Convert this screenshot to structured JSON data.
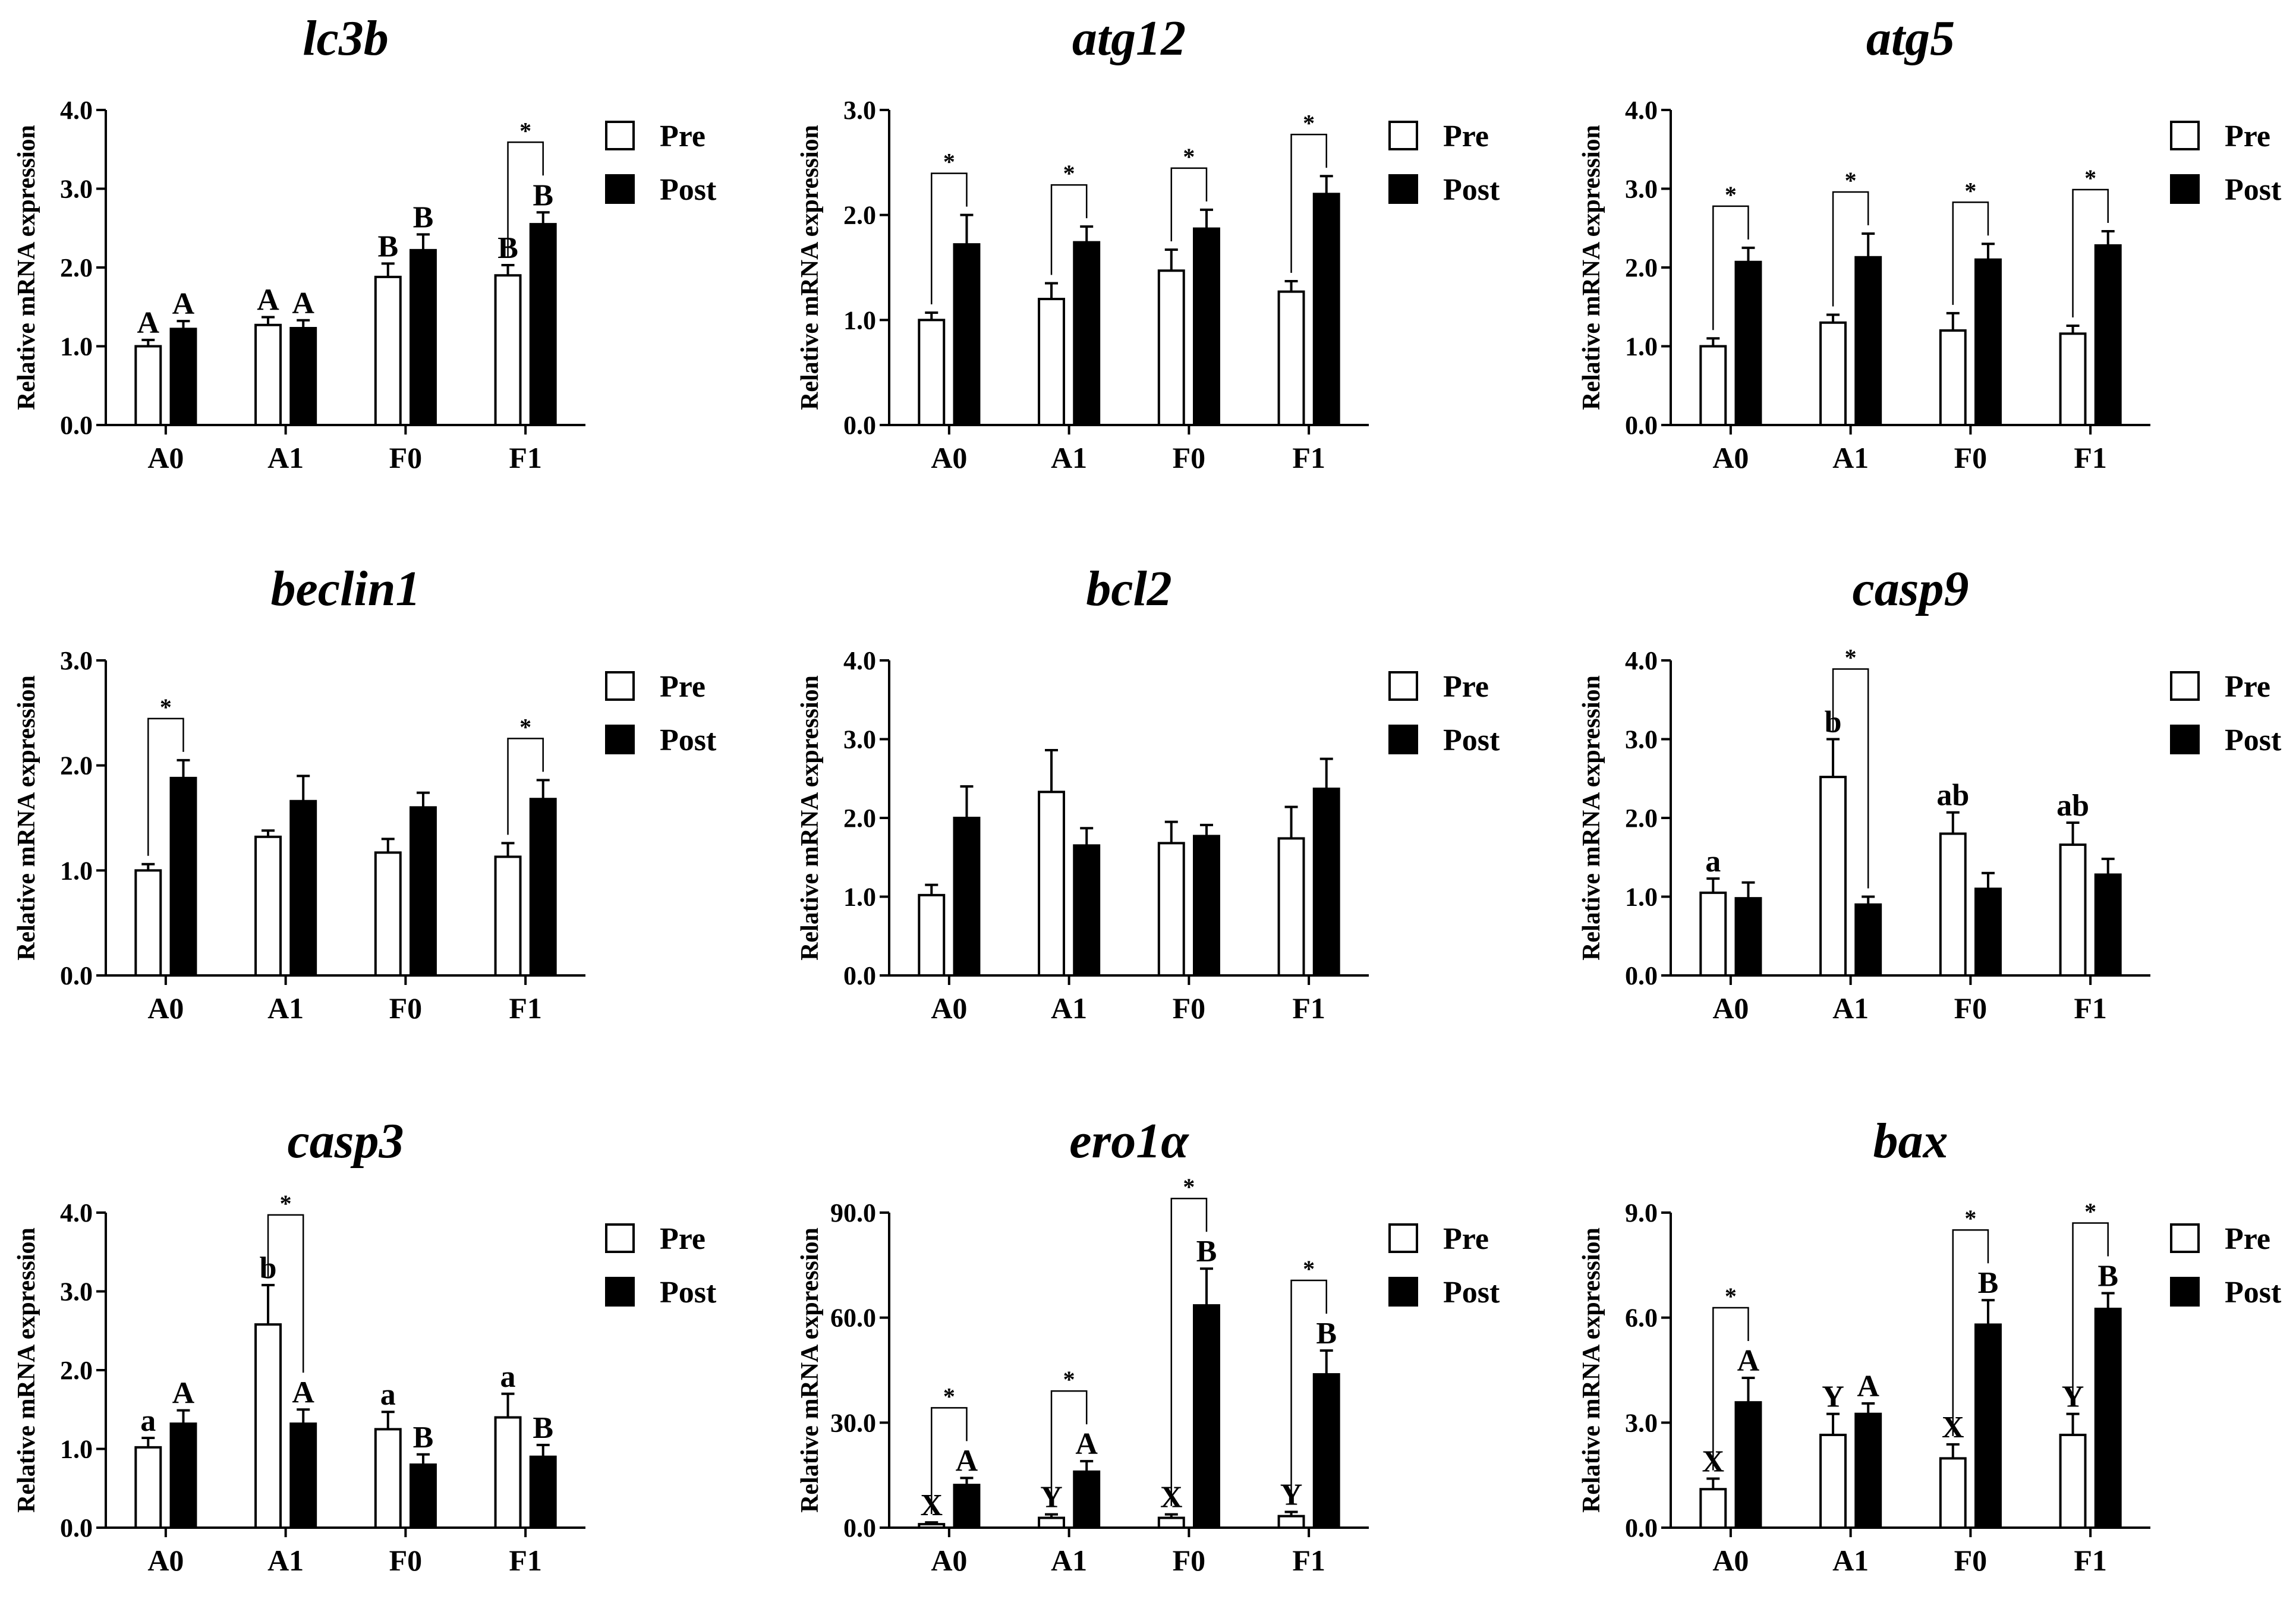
{
  "chart_data": [
    {
      "type": "bar",
      "title": "lc3b",
      "ylabel": "Relative mRNA expression",
      "ylim": [
        0,
        4
      ],
      "yticks": [
        "0.0",
        "1.0",
        "2.0",
        "3.0",
        "4.0"
      ],
      "categories": [
        "A0",
        "A1",
        "F0",
        "F1"
      ],
      "series": [
        {
          "name": "Pre",
          "values": [
            1.0,
            1.27,
            1.88,
            1.9
          ],
          "errors": [
            0.08,
            0.1,
            0.17,
            0.13
          ]
        },
        {
          "name": "Post",
          "values": [
            1.22,
            1.23,
            2.22,
            2.55
          ],
          "errors": [
            0.1,
            0.1,
            0.2,
            0.15
          ]
        }
      ],
      "letters": {
        "Pre": [
          "A",
          "A",
          "B",
          "B"
        ],
        "Post": [
          "A",
          "A",
          "B",
          "B"
        ]
      },
      "significance": [
        3
      ]
    },
    {
      "type": "bar",
      "title": "atg12",
      "ylabel": "Relative mRNA expression",
      "ylim": [
        0,
        3
      ],
      "yticks": [
        "0.0",
        "1.0",
        "2.0",
        "3.0"
      ],
      "categories": [
        "A0",
        "A1",
        "F0",
        "F1"
      ],
      "series": [
        {
          "name": "Pre",
          "values": [
            1.0,
            1.2,
            1.47,
            1.27
          ],
          "errors": [
            0.07,
            0.15,
            0.2,
            0.1
          ]
        },
        {
          "name": "Post",
          "values": [
            1.72,
            1.74,
            1.87,
            2.2
          ],
          "errors": [
            0.28,
            0.15,
            0.18,
            0.17
          ]
        }
      ],
      "letters": {
        "Pre": [
          "",
          "",
          "",
          ""
        ],
        "Post": [
          "",
          "",
          "",
          ""
        ]
      },
      "significance": [
        0,
        1,
        2,
        3
      ]
    },
    {
      "type": "bar",
      "title": "atg5",
      "ylabel": "Relative mRNA expression",
      "ylim": [
        0,
        4
      ],
      "yticks": [
        "0.0",
        "1.0",
        "2.0",
        "3.0",
        "4.0"
      ],
      "categories": [
        "A0",
        "A1",
        "F0",
        "F1"
      ],
      "series": [
        {
          "name": "Pre",
          "values": [
            1.0,
            1.3,
            1.2,
            1.16
          ],
          "errors": [
            0.1,
            0.1,
            0.22,
            0.1
          ]
        },
        {
          "name": "Post",
          "values": [
            2.07,
            2.13,
            2.1,
            2.28
          ],
          "errors": [
            0.18,
            0.3,
            0.2,
            0.18
          ]
        }
      ],
      "letters": {
        "Pre": [
          "",
          "",
          "",
          ""
        ],
        "Post": [
          "",
          "",
          "",
          ""
        ]
      },
      "significance": [
        0,
        1,
        2,
        3
      ]
    },
    {
      "type": "bar",
      "title": "beclin1",
      "ylabel": "Relative mRNA expression",
      "ylim": [
        0,
        3
      ],
      "yticks": [
        "0.0",
        "1.0",
        "2.0",
        "3.0"
      ],
      "categories": [
        "A0",
        "A1",
        "F0",
        "F1"
      ],
      "series": [
        {
          "name": "Pre",
          "values": [
            1.0,
            1.32,
            1.17,
            1.13
          ],
          "errors": [
            0.06,
            0.06,
            0.13,
            0.13
          ]
        },
        {
          "name": "Post",
          "values": [
            1.88,
            1.66,
            1.6,
            1.68
          ],
          "errors": [
            0.17,
            0.24,
            0.14,
            0.18
          ]
        }
      ],
      "letters": {
        "Pre": [
          "",
          "",
          "",
          ""
        ],
        "Post": [
          "",
          "",
          "",
          ""
        ]
      },
      "significance": [
        0,
        3
      ]
    },
    {
      "type": "bar",
      "title": "bcl2",
      "ylabel": "Relative mRNA expression",
      "ylim": [
        0,
        4
      ],
      "yticks": [
        "0.0",
        "1.0",
        "2.0",
        "3.0",
        "4.0"
      ],
      "categories": [
        "A0",
        "A1",
        "F0",
        "F1"
      ],
      "series": [
        {
          "name": "Pre",
          "values": [
            1.02,
            2.33,
            1.68,
            1.74
          ],
          "errors": [
            0.13,
            0.53,
            0.27,
            0.4
          ]
        },
        {
          "name": "Post",
          "values": [
            2.0,
            1.65,
            1.77,
            2.37
          ],
          "errors": [
            0.4,
            0.22,
            0.14,
            0.38
          ]
        }
      ],
      "letters": {
        "Pre": [
          "",
          "",
          "",
          ""
        ],
        "Post": [
          "",
          "",
          "",
          ""
        ]
      },
      "significance": []
    },
    {
      "type": "bar",
      "title": "casp9",
      "ylabel": "Relative mRNA expression",
      "ylim": [
        0,
        4
      ],
      "yticks": [
        "0.0",
        "1.0",
        "2.0",
        "3.0",
        "4.0"
      ],
      "categories": [
        "A0",
        "A1",
        "F0",
        "F1"
      ],
      "series": [
        {
          "name": "Pre",
          "values": [
            1.05,
            2.52,
            1.8,
            1.66
          ],
          "errors": [
            0.18,
            0.48,
            0.27,
            0.28
          ]
        },
        {
          "name": "Post",
          "values": [
            0.98,
            0.9,
            1.1,
            1.28
          ],
          "errors": [
            0.2,
            0.1,
            0.2,
            0.2
          ]
        }
      ],
      "letters": {
        "Pre": [
          "a",
          "b",
          "ab",
          "ab"
        ],
        "Post": [
          "",
          "",
          "",
          ""
        ]
      },
      "significance": [
        1
      ]
    },
    {
      "type": "bar",
      "title": "casp3",
      "ylabel": "Relative mRNA expression",
      "ylim": [
        0,
        4
      ],
      "yticks": [
        "0.0",
        "1.0",
        "2.0",
        "3.0",
        "4.0"
      ],
      "categories": [
        "A0",
        "A1",
        "F0",
        "F1"
      ],
      "series": [
        {
          "name": "Pre",
          "values": [
            1.02,
            2.58,
            1.25,
            1.4
          ],
          "errors": [
            0.12,
            0.5,
            0.22,
            0.3
          ]
        },
        {
          "name": "Post",
          "values": [
            1.32,
            1.32,
            0.8,
            0.9
          ],
          "errors": [
            0.17,
            0.18,
            0.13,
            0.15
          ]
        }
      ],
      "letters": {
        "Pre": [
          "a",
          "b",
          "a",
          "a"
        ],
        "Post": [
          "A",
          "A",
          "B",
          "B"
        ]
      },
      "significance": [
        1
      ]
    },
    {
      "type": "bar",
      "title": "ero1α",
      "ylabel": "Relative mRNA expression",
      "ylim": [
        0,
        90
      ],
      "yticks": [
        "0.0",
        "30.0",
        "60.0",
        "90.0"
      ],
      "categories": [
        "A0",
        "A1",
        "F0",
        "F1"
      ],
      "series": [
        {
          "name": "Pre",
          "values": [
            1.0,
            2.8,
            2.8,
            3.3
          ],
          "errors": [
            0.5,
            1.0,
            1.0,
            1.2
          ]
        },
        {
          "name": "Post",
          "values": [
            12.2,
            16.0,
            63.5,
            43.8
          ],
          "errors": [
            2.0,
            3.0,
            10.5,
            6.8
          ]
        }
      ],
      "letters": {
        "Pre": [
          "X",
          "Y",
          "X",
          "Y"
        ],
        "Post": [
          "A",
          "A",
          "B",
          "B"
        ]
      },
      "significance": [
        0,
        1,
        2,
        3
      ]
    },
    {
      "type": "bar",
      "title": "bax",
      "ylabel": "Relative mRNA expression",
      "ylim": [
        0,
        9
      ],
      "yticks": [
        "0.0",
        "3.0",
        "6.0",
        "9.0"
      ],
      "categories": [
        "A0",
        "A1",
        "F0",
        "F1"
      ],
      "series": [
        {
          "name": "Pre",
          "values": [
            1.1,
            2.65,
            1.98,
            2.65
          ],
          "errors": [
            0.3,
            0.6,
            0.4,
            0.6
          ]
        },
        {
          "name": "Post",
          "values": [
            3.58,
            3.25,
            5.8,
            6.25
          ],
          "errors": [
            0.7,
            0.3,
            0.7,
            0.45
          ]
        }
      ],
      "letters": {
        "Pre": [
          "X",
          "Y",
          "X",
          "Y"
        ],
        "Post": [
          "A",
          "A",
          "B",
          "B"
        ]
      },
      "significance": [
        0,
        2,
        3
      ]
    }
  ],
  "legend": {
    "pre_label": "Pre",
    "post_label": "Post"
  },
  "colors": {
    "pre_fill": "#ffffff",
    "post_fill": "#000000",
    "stroke": "#000000"
  },
  "significance_marker": "*"
}
